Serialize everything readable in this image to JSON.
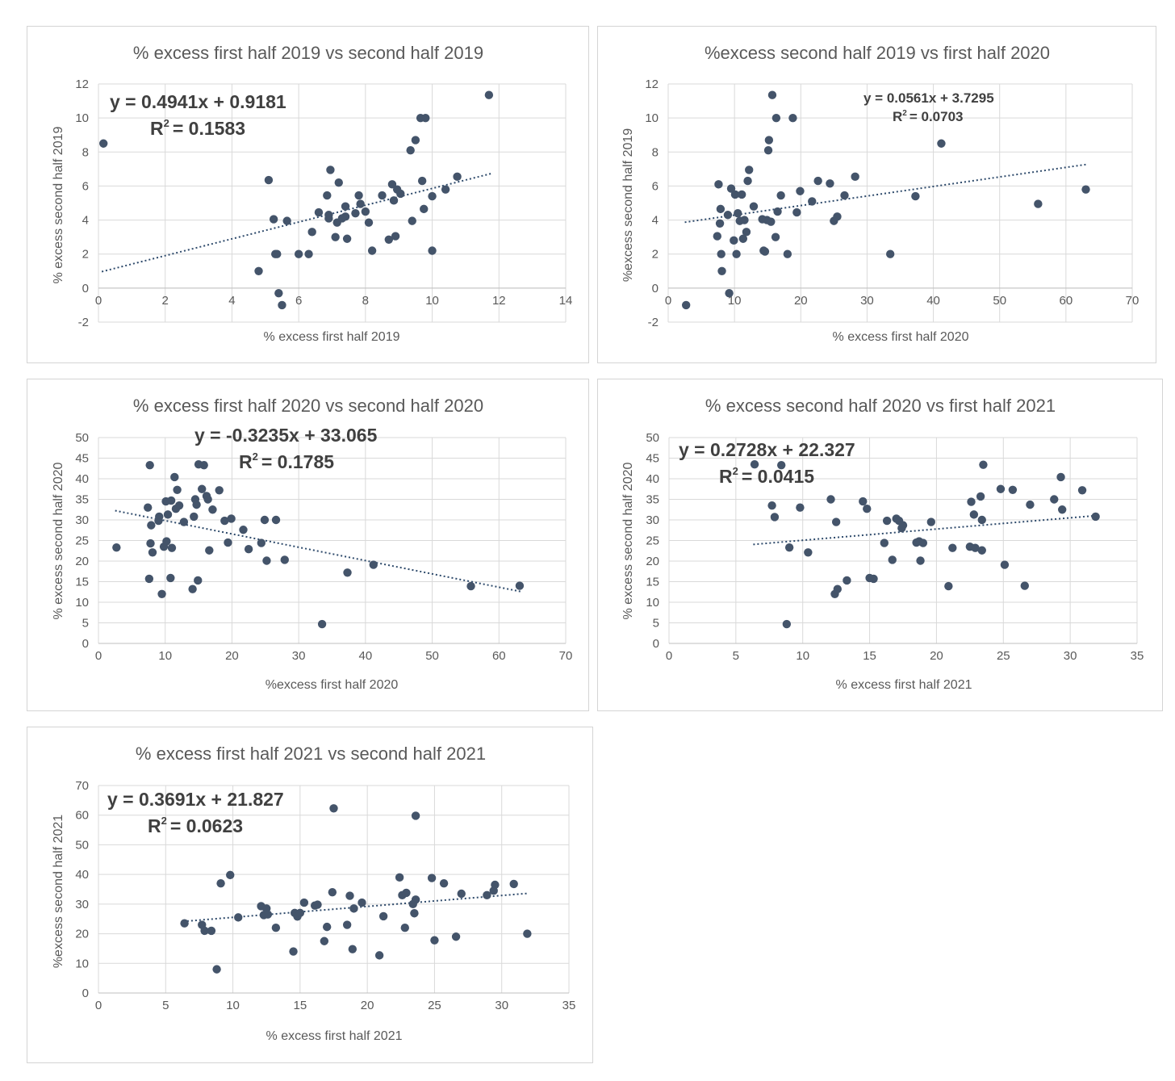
{
  "chart_data": [
    {
      "type": "scatter",
      "title": "% excess first half 2019 vs second half 2019",
      "xlabel": "% excess first half 2019",
      "ylabel": "% excess second half 2019",
      "xlim": [
        0,
        14
      ],
      "ylim": [
        -2,
        12
      ],
      "xticks": [
        0,
        2,
        4,
        6,
        8,
        10,
        12,
        14
      ],
      "yticks": [
        -2,
        0,
        2,
        4,
        6,
        8,
        10,
        12
      ],
      "tick_labels_x": [
        "0",
        "2",
        "4",
        "6",
        "8",
        "10",
        "12",
        "14"
      ],
      "tick_labels_y": [
        "-2",
        "0",
        "2",
        "4",
        "6",
        "8",
        "10",
        "12"
      ],
      "x_axis_at": 0,
      "grid": true,
      "marker_color": "#44546a",
      "trendline": {
        "equation": "y = 0.4941x + 0.9181",
        "r2_label": "R",
        "r2_sup": "2",
        "r2_value": "= 0.1583",
        "slope": 0.4941,
        "intercept": 0.9181,
        "x_range": [
          0.1,
          11.8
        ]
      },
      "points": [
        [
          0.15,
          8.5
        ],
        [
          4.8,
          1.0
        ],
        [
          5.1,
          6.35
        ],
        [
          5.25,
          4.05
        ],
        [
          5.3,
          2.0
        ],
        [
          5.35,
          2.0
        ],
        [
          5.4,
          -0.3
        ],
        [
          5.5,
          -1.0
        ],
        [
          5.65,
          3.95
        ],
        [
          6.0,
          2.0
        ],
        [
          6.3,
          2.0
        ],
        [
          6.4,
          3.3
        ],
        [
          6.6,
          4.45
        ],
        [
          6.85,
          5.45
        ],
        [
          6.9,
          4.1
        ],
        [
          6.9,
          4.3
        ],
        [
          6.95,
          6.95
        ],
        [
          7.1,
          3.0
        ],
        [
          7.15,
          3.85
        ],
        [
          7.2,
          6.2
        ],
        [
          7.3,
          4.1
        ],
        [
          7.4,
          4.2
        ],
        [
          7.4,
          4.8
        ],
        [
          7.45,
          2.9
        ],
        [
          7.7,
          4.4
        ],
        [
          7.8,
          5.45
        ],
        [
          7.85,
          4.95
        ],
        [
          8.0,
          4.5
        ],
        [
          8.1,
          3.85
        ],
        [
          8.2,
          2.2
        ],
        [
          8.5,
          5.45
        ],
        [
          8.7,
          2.85
        ],
        [
          8.8,
          6.1
        ],
        [
          8.85,
          5.15
        ],
        [
          8.9,
          3.05
        ],
        [
          8.95,
          5.8
        ],
        [
          9.05,
          5.55
        ],
        [
          9.35,
          8.1
        ],
        [
          9.4,
          3.95
        ],
        [
          9.5,
          8.7
        ],
        [
          9.65,
          10.0
        ],
        [
          9.7,
          6.3
        ],
        [
          9.75,
          4.65
        ],
        [
          9.8,
          10.0
        ],
        [
          10.0,
          5.4
        ],
        [
          10.0,
          2.2
        ],
        [
          10.4,
          5.8
        ],
        [
          10.75,
          6.55
        ],
        [
          11.7,
          11.35
        ]
      ]
    },
    {
      "type": "scatter",
      "title": "%excess second half 2019 vs first half 2020",
      "xlabel": "% excess first half 2020",
      "ylabel": "%excess second half 2019",
      "xlim": [
        0,
        70
      ],
      "ylim": [
        -2,
        12
      ],
      "xticks": [
        0,
        10,
        20,
        30,
        40,
        50,
        60,
        70
      ],
      "yticks": [
        -2,
        0,
        2,
        4,
        6,
        8,
        10,
        12
      ],
      "tick_labels_x": [
        "0",
        "10",
        "20",
        "30",
        "40",
        "50",
        "60",
        "70"
      ],
      "tick_labels_y": [
        "-2",
        "0",
        "2",
        "4",
        "6",
        "8",
        "10",
        "12"
      ],
      "x_axis_at": 0,
      "grid": true,
      "marker_color": "#44546a",
      "trendline": {
        "equation": "y = 0.0561x + 3.7295",
        "r2_label": "R",
        "r2_sup": "2",
        "r2_value": "= 0.0703",
        "slope": 0.0561,
        "intercept": 3.7295,
        "x_range": [
          2.5,
          63.2
        ]
      },
      "points": [
        [
          2.7,
          -1.0
        ],
        [
          7.4,
          3.05
        ],
        [
          7.6,
          6.1
        ],
        [
          7.8,
          3.8
        ],
        [
          7.9,
          4.65
        ],
        [
          8.0,
          2.0
        ],
        [
          8.1,
          1.0
        ],
        [
          9.0,
          4.3
        ],
        [
          9.2,
          -0.3
        ],
        [
          9.5,
          5.85
        ],
        [
          9.9,
          2.8
        ],
        [
          10.1,
          5.5
        ],
        [
          10.3,
          2.0
        ],
        [
          10.5,
          4.4
        ],
        [
          10.8,
          3.95
        ],
        [
          11.1,
          5.5
        ],
        [
          11.3,
          2.9
        ],
        [
          11.5,
          4.0
        ],
        [
          11.8,
          3.3
        ],
        [
          12.0,
          6.3
        ],
        [
          12.2,
          6.95
        ],
        [
          12.9,
          4.8
        ],
        [
          14.2,
          4.05
        ],
        [
          14.4,
          2.2
        ],
        [
          14.6,
          2.15
        ],
        [
          14.9,
          4.0
        ],
        [
          15.1,
          8.1
        ],
        [
          15.2,
          8.7
        ],
        [
          15.5,
          3.9
        ],
        [
          15.7,
          11.35
        ],
        [
          16.2,
          3.0
        ],
        [
          16.3,
          10.0
        ],
        [
          16.5,
          4.5
        ],
        [
          17.0,
          5.45
        ],
        [
          18.0,
          2.0
        ],
        [
          18.8,
          10.0
        ],
        [
          19.4,
          4.45
        ],
        [
          19.9,
          5.7
        ],
        [
          21.7,
          5.1
        ],
        [
          22.6,
          6.3
        ],
        [
          24.4,
          6.15
        ],
        [
          25.0,
          3.95
        ],
        [
          25.5,
          4.2
        ],
        [
          26.6,
          5.45
        ],
        [
          28.2,
          6.55
        ],
        [
          33.5,
          2.0
        ],
        [
          37.3,
          5.4
        ],
        [
          41.2,
          8.5
        ],
        [
          55.8,
          4.95
        ],
        [
          63.0,
          5.8
        ]
      ]
    },
    {
      "type": "scatter",
      "title": "% excess first half 2020 vs second half 2020",
      "xlabel": "%excess first half 2020",
      "ylabel": "% excess second half 2020",
      "xlim": [
        0,
        70
      ],
      "ylim": [
        0,
        50
      ],
      "xticks": [
        0,
        10,
        20,
        30,
        40,
        50,
        60,
        70
      ],
      "yticks": [
        0,
        5,
        10,
        15,
        20,
        25,
        30,
        35,
        40,
        45,
        50
      ],
      "tick_labels_x": [
        "0",
        "10",
        "20",
        "30",
        "40",
        "50",
        "60",
        "70"
      ],
      "tick_labels_y": [
        "0",
        "5",
        "10",
        "15",
        "20",
        "25",
        "30",
        "35",
        "40",
        "45",
        "50"
      ],
      "x_axis_at": 0,
      "grid": true,
      "marker_color": "#44546a",
      "trendline": {
        "equation": "y = -0.3235x + 33.065",
        "r2_label": "R",
        "r2_sup": "2",
        "r2_value": "= 0.1785",
        "slope": -0.3235,
        "intercept": 33.065,
        "x_range": [
          2.5,
          63.2
        ]
      },
      "points": [
        [
          2.7,
          23.3
        ],
        [
          7.4,
          33.0
        ],
        [
          7.6,
          15.7
        ],
        [
          7.7,
          43.3
        ],
        [
          7.8,
          24.3
        ],
        [
          7.9,
          28.7
        ],
        [
          8.1,
          22.1
        ],
        [
          9.0,
          29.8
        ],
        [
          9.1,
          30.8
        ],
        [
          9.5,
          12.0
        ],
        [
          9.8,
          23.5
        ],
        [
          10.1,
          34.5
        ],
        [
          10.2,
          24.8
        ],
        [
          10.4,
          31.3
        ],
        [
          10.8,
          15.9
        ],
        [
          10.9,
          34.7
        ],
        [
          11.0,
          23.2
        ],
        [
          11.4,
          40.4
        ],
        [
          11.6,
          32.7
        ],
        [
          11.8,
          37.3
        ],
        [
          12.1,
          33.5
        ],
        [
          12.8,
          29.5
        ],
        [
          14.1,
          13.2
        ],
        [
          14.3,
          30.8
        ],
        [
          14.5,
          35.0
        ],
        [
          14.7,
          33.7
        ],
        [
          14.9,
          15.3
        ],
        [
          15.0,
          43.5
        ],
        [
          15.5,
          37.5
        ],
        [
          15.8,
          43.3
        ],
        [
          16.2,
          35.8
        ],
        [
          16.4,
          35.0
        ],
        [
          16.6,
          22.6
        ],
        [
          17.1,
          32.5
        ],
        [
          18.1,
          37.2
        ],
        [
          18.9,
          29.8
        ],
        [
          19.4,
          24.5
        ],
        [
          19.9,
          30.3
        ],
        [
          21.7,
          27.6
        ],
        [
          22.5,
          22.9
        ],
        [
          24.4,
          24.4
        ],
        [
          24.9,
          30.0
        ],
        [
          25.2,
          20.1
        ],
        [
          26.6,
          30.0
        ],
        [
          27.9,
          20.3
        ],
        [
          33.5,
          4.7
        ],
        [
          37.3,
          17.2
        ],
        [
          41.2,
          19.1
        ],
        [
          55.8,
          13.9
        ],
        [
          63.1,
          14.0
        ]
      ]
    },
    {
      "type": "scatter",
      "title": "% excess second half 2020 vs first half 2021",
      "xlabel": "% excess first half 2021",
      "ylabel": "% excess second half 2020",
      "xlim": [
        0,
        35
      ],
      "ylim": [
        0,
        50
      ],
      "xticks": [
        0,
        5,
        10,
        15,
        20,
        25,
        30,
        35
      ],
      "yticks": [
        0,
        5,
        10,
        15,
        20,
        25,
        30,
        35,
        40,
        45,
        50
      ],
      "tick_labels_x": [
        "0",
        "5",
        "10",
        "15",
        "20",
        "25",
        "30",
        "35"
      ],
      "tick_labels_y": [
        "0",
        "5",
        "10",
        "15",
        "20",
        "25",
        "30",
        "35",
        "40",
        "45",
        "50"
      ],
      "x_axis_at": 0,
      "grid": true,
      "marker_color": "#44546a",
      "trendline": {
        "equation": "y = 0.2728x + 22.327",
        "r2_label": "R",
        "r2_sup": "2",
        "r2_value": "= 0.0415",
        "slope": 0.2728,
        "intercept": 22.327,
        "x_range": [
          6.3,
          32.0
        ]
      },
      "points": [
        [
          6.4,
          43.5
        ],
        [
          7.7,
          33.5
        ],
        [
          7.9,
          30.7
        ],
        [
          8.4,
          43.3
        ],
        [
          8.8,
          4.7
        ],
        [
          9.0,
          23.3
        ],
        [
          9.8,
          33.0
        ],
        [
          10.4,
          22.1
        ],
        [
          12.1,
          35.0
        ],
        [
          12.4,
          12.0
        ],
        [
          12.5,
          29.5
        ],
        [
          12.6,
          13.2
        ],
        [
          13.3,
          15.3
        ],
        [
          14.5,
          34.5
        ],
        [
          14.8,
          32.7
        ],
        [
          15.0,
          15.9
        ],
        [
          15.3,
          15.7
        ],
        [
          16.1,
          24.4
        ],
        [
          16.3,
          29.8
        ],
        [
          16.7,
          20.3
        ],
        [
          17.0,
          30.3
        ],
        [
          17.2,
          29.8
        ],
        [
          17.4,
          28.0
        ],
        [
          17.5,
          28.7
        ],
        [
          18.5,
          24.5
        ],
        [
          18.7,
          24.8
        ],
        [
          18.8,
          20.1
        ],
        [
          19.0,
          24.4
        ],
        [
          19.6,
          29.5
        ],
        [
          20.9,
          13.9
        ],
        [
          21.2,
          23.2
        ],
        [
          22.5,
          23.5
        ],
        [
          22.6,
          34.4
        ],
        [
          22.8,
          31.3
        ],
        [
          22.9,
          23.2
        ],
        [
          23.3,
          35.7
        ],
        [
          23.4,
          22.6
        ],
        [
          23.4,
          30.0
        ],
        [
          23.5,
          43.4
        ],
        [
          24.8,
          37.5
        ],
        [
          25.1,
          19.1
        ],
        [
          25.7,
          37.3
        ],
        [
          26.6,
          14.0
        ],
        [
          27.0,
          33.7
        ],
        [
          28.8,
          35.0
        ],
        [
          29.3,
          40.4
        ],
        [
          29.4,
          32.5
        ],
        [
          30.9,
          37.2
        ],
        [
          31.9,
          30.8
        ]
      ]
    },
    {
      "type": "scatter",
      "title": "% excess first half 2021 vs second half 2021",
      "xlabel": "% excess first half 2021",
      "ylabel": "%excess second half 2021",
      "xlim": [
        0,
        35
      ],
      "ylim": [
        0,
        70
      ],
      "xticks": [
        0,
        5,
        10,
        15,
        20,
        25,
        30,
        35
      ],
      "yticks": [
        0,
        10,
        20,
        30,
        40,
        50,
        60,
        70
      ],
      "tick_labels_x": [
        "0",
        "5",
        "10",
        "15",
        "20",
        "25",
        "30",
        "35"
      ],
      "tick_labels_y": [
        "0",
        "10",
        "20",
        "30",
        "40",
        "50",
        "60",
        "70"
      ],
      "x_axis_at": 0,
      "grid": true,
      "marker_color": "#44546a",
      "trendline": {
        "equation": "y = 0.3691x + 21.827",
        "r2_label": "R",
        "r2_sup": "2",
        "r2_value": "= 0.0623",
        "slope": 0.3691,
        "intercept": 21.827,
        "x_range": [
          6.3,
          32.0
        ]
      },
      "points": [
        [
          6.4,
          23.5
        ],
        [
          7.7,
          23.0
        ],
        [
          7.9,
          21.0
        ],
        [
          8.4,
          21.0
        ],
        [
          8.8,
          8.0
        ],
        [
          9.1,
          37.0
        ],
        [
          9.8,
          39.8
        ],
        [
          10.4,
          25.5
        ],
        [
          12.1,
          29.3
        ],
        [
          12.3,
          26.3
        ],
        [
          12.5,
          28.5
        ],
        [
          12.6,
          26.5
        ],
        [
          13.2,
          22.0
        ],
        [
          14.5,
          14.0
        ],
        [
          14.6,
          27.0
        ],
        [
          14.8,
          25.8
        ],
        [
          15.0,
          27.0
        ],
        [
          15.3,
          30.5
        ],
        [
          16.1,
          29.5
        ],
        [
          16.3,
          29.8
        ],
        [
          16.8,
          17.5
        ],
        [
          17.0,
          22.3
        ],
        [
          17.4,
          34.0
        ],
        [
          17.5,
          62.3
        ],
        [
          18.5,
          23.0
        ],
        [
          18.7,
          32.8
        ],
        [
          18.9,
          14.8
        ],
        [
          19.0,
          28.5
        ],
        [
          19.6,
          30.5
        ],
        [
          20.9,
          12.7
        ],
        [
          21.2,
          25.9
        ],
        [
          22.4,
          39.0
        ],
        [
          22.6,
          33.0
        ],
        [
          22.8,
          22.0
        ],
        [
          22.9,
          33.8
        ],
        [
          23.4,
          30.0
        ],
        [
          23.5,
          26.9
        ],
        [
          23.6,
          31.5
        ],
        [
          23.6,
          59.8
        ],
        [
          24.8,
          38.8
        ],
        [
          25.0,
          17.8
        ],
        [
          25.7,
          37.0
        ],
        [
          26.6,
          19.0
        ],
        [
          27.0,
          33.5
        ],
        [
          28.9,
          33.0
        ],
        [
          29.4,
          34.5
        ],
        [
          29.5,
          36.5
        ],
        [
          30.9,
          36.8
        ],
        [
          31.9,
          20.0
        ]
      ]
    }
  ]
}
